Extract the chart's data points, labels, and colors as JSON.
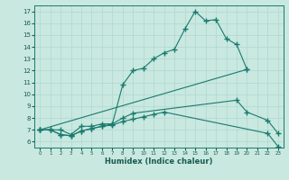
{
  "title": "",
  "xlabel": "Humidex (Indice chaleur)",
  "bg_color": "#c8e8e0",
  "line_color": "#1a7a6e",
  "grid_color": "#b0d8d0",
  "xlim": [
    -0.5,
    23.5
  ],
  "ylim": [
    5.5,
    17.5
  ],
  "xticks": [
    0,
    1,
    2,
    3,
    4,
    5,
    6,
    7,
    8,
    9,
    10,
    11,
    12,
    13,
    14,
    15,
    16,
    17,
    18,
    19,
    20,
    21,
    22,
    23
  ],
  "yticks": [
    6,
    7,
    8,
    9,
    10,
    11,
    12,
    13,
    14,
    15,
    16,
    17
  ],
  "series": [
    {
      "x": [
        0,
        1,
        2,
        3,
        4,
        5,
        6,
        7,
        8,
        9,
        10,
        11,
        12,
        13,
        14,
        15,
        16,
        17,
        18,
        19,
        20
      ],
      "y": [
        7.0,
        7.0,
        7.0,
        6.6,
        7.3,
        7.3,
        7.5,
        7.5,
        10.8,
        12.0,
        12.2,
        13.0,
        13.5,
        13.8,
        15.5,
        17.0,
        16.2,
        16.3,
        14.7,
        14.2,
        12.1
      ]
    },
    {
      "x": [
        0,
        20
      ],
      "y": [
        7.0,
        12.1
      ]
    },
    {
      "x": [
        0,
        1,
        2,
        3,
        4,
        5,
        6,
        7,
        8,
        9,
        19,
        20,
        22,
        23
      ],
      "y": [
        7.0,
        7.0,
        6.6,
        6.5,
        6.9,
        7.1,
        7.3,
        7.5,
        8.0,
        8.4,
        9.5,
        8.5,
        7.8,
        6.7
      ]
    },
    {
      "x": [
        0,
        1,
        2,
        3,
        4,
        5,
        6,
        7,
        8,
        9,
        10,
        11,
        12,
        22,
        23
      ],
      "y": [
        7.0,
        7.0,
        6.6,
        6.5,
        6.9,
        7.1,
        7.3,
        7.4,
        7.7,
        7.9,
        8.1,
        8.3,
        8.5,
        6.7,
        5.6
      ]
    }
  ]
}
